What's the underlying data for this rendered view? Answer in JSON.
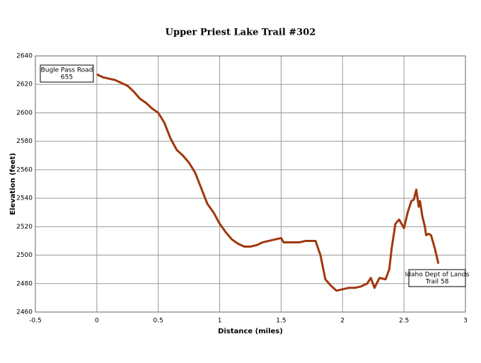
{
  "chart_data": {
    "type": "line",
    "title": "Upper Priest Lake Trail #302",
    "x_label": "Distance (miles)",
    "y_label": "Elevation (feet)",
    "xlim": [
      -0.5,
      3
    ],
    "xticks": [
      -0.5,
      0,
      0.5,
      1,
      1.5,
      2,
      2.5,
      3
    ],
    "ylim": [
      2460,
      2640
    ],
    "yticks": [
      2460,
      2480,
      2500,
      2520,
      2540,
      2560,
      2580,
      2600,
      2620,
      2640
    ],
    "grid": true,
    "series": [
      {
        "color": "#a0380e",
        "x": [
          0,
          0.05,
          0.1,
          0.15,
          0.2,
          0.25,
          0.3,
          0.35,
          0.4,
          0.45,
          0.5,
          0.55,
          0.6,
          0.65,
          0.7,
          0.75,
          0.8,
          0.85,
          0.9,
          0.95,
          1.0,
          1.05,
          1.1,
          1.15,
          1.2,
          1.25,
          1.3,
          1.35,
          1.4,
          1.45,
          1.5,
          1.52,
          1.55,
          1.6,
          1.65,
          1.7,
          1.75,
          1.78,
          1.82,
          1.86,
          1.9,
          1.95,
          2.0,
          2.05,
          2.1,
          2.15,
          2.2,
          2.23,
          2.26,
          2.3,
          2.35,
          2.38,
          2.4,
          2.43,
          2.46,
          2.5,
          2.53,
          2.56,
          2.58,
          2.6,
          2.62,
          2.63,
          2.65,
          2.67,
          2.68,
          2.7,
          2.72,
          2.75,
          2.78
        ],
        "values": [
          2627,
          2625,
          2624,
          2623,
          2621,
          2619,
          2615,
          2610,
          2607,
          2603,
          2600,
          2593,
          2582,
          2574,
          2570,
          2565,
          2558,
          2547,
          2536,
          2530,
          2522,
          2516,
          2511,
          2508,
          2506,
          2506,
          2507,
          2509,
          2510,
          2511,
          2512,
          2509,
          2509,
          2509,
          2509,
          2510,
          2510,
          2510,
          2500,
          2483,
          2479,
          2475,
          2476,
          2477,
          2477,
          2478,
          2480,
          2484,
          2477,
          2484,
          2483,
          2490,
          2505,
          2522,
          2525,
          2519,
          2530,
          2538,
          2539,
          2546,
          2534,
          2538,
          2527,
          2520,
          2514,
          2515,
          2514,
          2505,
          2494
        ]
      }
    ],
    "annotations": [
      {
        "lines": [
          "Bugle Pass Road",
          "655"
        ]
      },
      {
        "lines": [
          "Idaho Dept of Lands",
          "Trail 58"
        ]
      }
    ]
  }
}
